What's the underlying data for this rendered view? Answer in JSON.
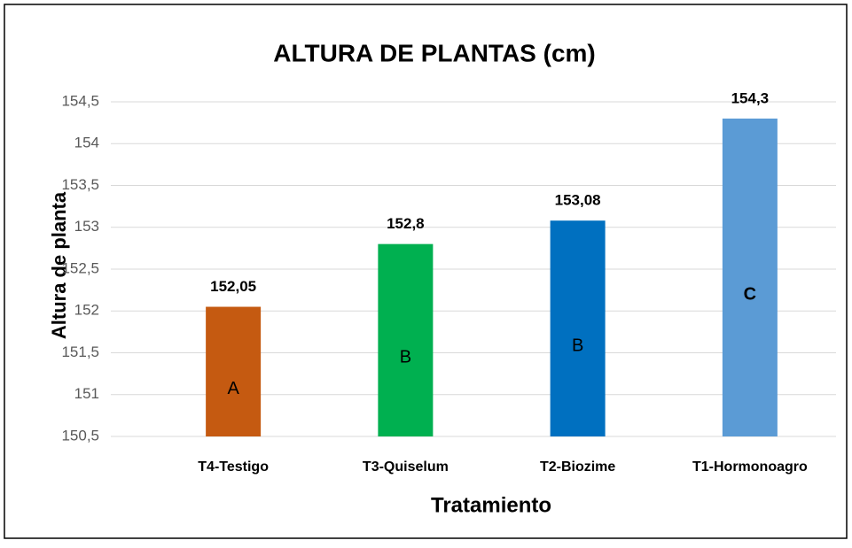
{
  "chart_data": {
    "type": "bar",
    "title": "ALTURA DE PLANTAS (cm)",
    "x_label": "Tratamiento",
    "y_label": "Altura de planta",
    "categories": [
      "T4-Testigo",
      "T3-Quiselum",
      "T2-Biozime",
      "T1-Hormonoagro"
    ],
    "values": [
      152.05,
      152.8,
      153.08,
      154.3
    ],
    "value_labels": [
      "152,05",
      "152,8",
      "153,08",
      "154,3"
    ],
    "colors": [
      "#c55a11",
      "#00b050",
      "#0070c0",
      "#5b9bd5"
    ],
    "annotations": [
      "A",
      "B",
      "B",
      "C"
    ],
    "ylim": [
      150.5,
      154.5
    ],
    "yticks": [
      {
        "value": 150.5,
        "label": "150,5"
      },
      151,
      {
        "value": 151.5,
        "label": "151,5"
      },
      152,
      {
        "value": 152.5,
        "label": "152,5"
      },
      153,
      {
        "value": 153.5,
        "label": "153,5"
      },
      154,
      {
        "value": 154.5,
        "label": "154,5"
      }
    ],
    "grid": true
  }
}
